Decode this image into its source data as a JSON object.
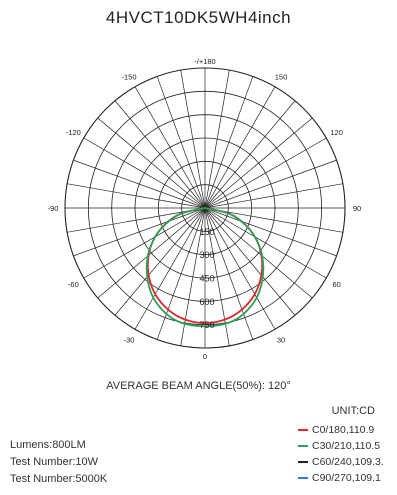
{
  "title": "4HVCT10DK5WH4inch",
  "beam_angle_text": "AVERAGE BEAM ANGLE(50%): 120°",
  "unit_text": "UNIT:CD",
  "info": [
    "Lumens:800LM",
    "Test Number:10W",
    "Test Number:5000K"
  ],
  "chart_data": {
    "type": "polar",
    "title": "4HVCT10DK5WH4inch",
    "angle_labels": [
      {
        "angle": 180,
        "label": "-/+180"
      },
      {
        "angle": 150,
        "label": "150"
      },
      {
        "angle": 120,
        "label": "120"
      },
      {
        "angle": 90,
        "label": "90"
      },
      {
        "angle": 60,
        "label": "60"
      },
      {
        "angle": 30,
        "label": "30"
      },
      {
        "angle": 0,
        "label": "0"
      },
      {
        "angle": -30,
        "label": "-30"
      },
      {
        "angle": -60,
        "label": "-60"
      },
      {
        "angle": -90,
        "label": "-90"
      },
      {
        "angle": -120,
        "label": "-120"
      },
      {
        "angle": -150,
        "label": "-150"
      }
    ],
    "radial_ticks": [
      150,
      300,
      450,
      600,
      750
    ],
    "radial_max": 900,
    "series": [
      {
        "name": "C0/180,110.9",
        "color": "#e0262b",
        "angles": [
          0,
          15,
          30,
          45,
          60,
          75,
          90
        ],
        "values": [
          740,
          715,
          640,
          520,
          370,
          190,
          0
        ]
      },
      {
        "name": "C30/210,110.5",
        "color": "#2ca05a",
        "angles": [
          0,
          15,
          30,
          45,
          60,
          75,
          90
        ],
        "values": [
          760,
          745,
          665,
          530,
          370,
          185,
          0
        ]
      },
      {
        "name": "C60/240,109.3.",
        "color": "#222222",
        "angles": [],
        "values": []
      },
      {
        "name": "C90/270,109.1",
        "color": "#2f7fd8",
        "angles": [],
        "values": []
      }
    ]
  }
}
